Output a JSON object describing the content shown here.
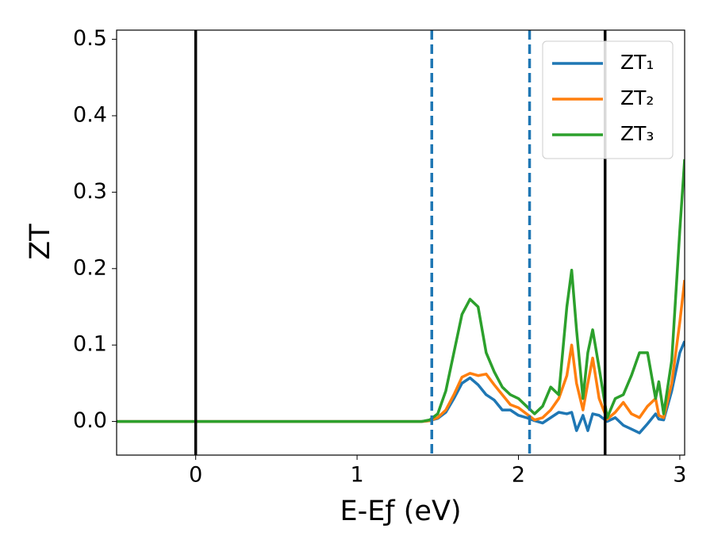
{
  "chart_data": {
    "type": "line",
    "xlabel": "E-Eƒ (eV)",
    "ylabel": "ZT",
    "x": [
      -0.49,
      0,
      0.5,
      1.0,
      1.3,
      1.4,
      1.45,
      1.5,
      1.55,
      1.6,
      1.65,
      1.7,
      1.75,
      1.8,
      1.85,
      1.9,
      1.95,
      2.0,
      2.05,
      2.1,
      2.15,
      2.2,
      2.25,
      2.3,
      2.33,
      2.36,
      2.4,
      2.43,
      2.46,
      2.5,
      2.55,
      2.6,
      2.65,
      2.7,
      2.75,
      2.8,
      2.85,
      2.87,
      2.9,
      2.95,
      3.0,
      3.03
    ],
    "series": [
      {
        "name": "ZT₁",
        "color": "#1f77b4",
        "values": [
          0,
          0,
          0,
          0,
          0,
          0,
          0.001,
          0.004,
          0.012,
          0.03,
          0.05,
          0.057,
          0.048,
          0.035,
          0.028,
          0.015,
          0.015,
          0.008,
          0.005,
          0.001,
          -0.002,
          0.005,
          0.012,
          0.01,
          0.012,
          -0.012,
          0.008,
          -0.012,
          0.01,
          0.008,
          0,
          0.005,
          -0.005,
          -0.01,
          -0.015,
          -0.003,
          0.01,
          0.003,
          0.002,
          0.04,
          0.09,
          0.105
        ]
      },
      {
        "name": "ZT₂",
        "color": "#ff7f0e",
        "values": [
          0,
          0,
          0,
          0,
          0,
          0,
          0.001,
          0.005,
          0.015,
          0.035,
          0.058,
          0.063,
          0.06,
          0.062,
          0.048,
          0.035,
          0.022,
          0.018,
          0.01,
          0.002,
          0.005,
          0.015,
          0.03,
          0.06,
          0.1,
          0.05,
          0.015,
          0.05,
          0.083,
          0.03,
          0.003,
          0.012,
          0.025,
          0.01,
          0.005,
          0.02,
          0.03,
          0.008,
          0.005,
          0.05,
          0.13,
          0.185
        ]
      },
      {
        "name": "ZT₃",
        "color": "#2ca02c",
        "values": [
          0,
          0,
          0,
          0,
          0,
          0,
          0.002,
          0.01,
          0.04,
          0.09,
          0.14,
          0.16,
          0.15,
          0.09,
          0.065,
          0.045,
          0.035,
          0.03,
          0.02,
          0.01,
          0.02,
          0.045,
          0.035,
          0.15,
          0.198,
          0.12,
          0.03,
          0.09,
          0.12,
          0.07,
          0.005,
          0.03,
          0.035,
          0.06,
          0.09,
          0.09,
          0.03,
          0.052,
          0.01,
          0.08,
          0.25,
          0.343
        ]
      }
    ],
    "vlines": [
      {
        "x": 0,
        "color": "#000000",
        "dashed": false
      },
      {
        "x": 1.463,
        "color": "#1f77b4",
        "dashed": true
      },
      {
        "x": 2.069,
        "color": "#1f77b4",
        "dashed": true
      },
      {
        "x": 2.537,
        "color": "#000000",
        "dashed": false
      }
    ],
    "xlim": [
      -0.49,
      3.03
    ],
    "ylim": [
      -0.044,
      0.512
    ],
    "xticks": [
      0,
      1,
      2,
      3
    ],
    "yticks": [
      {
        "value": 0,
        "label": "0.0"
      },
      0.1,
      0.2,
      0.3,
      0.4,
      0.5
    ],
    "legend": "upper right",
    "grid": false
  }
}
